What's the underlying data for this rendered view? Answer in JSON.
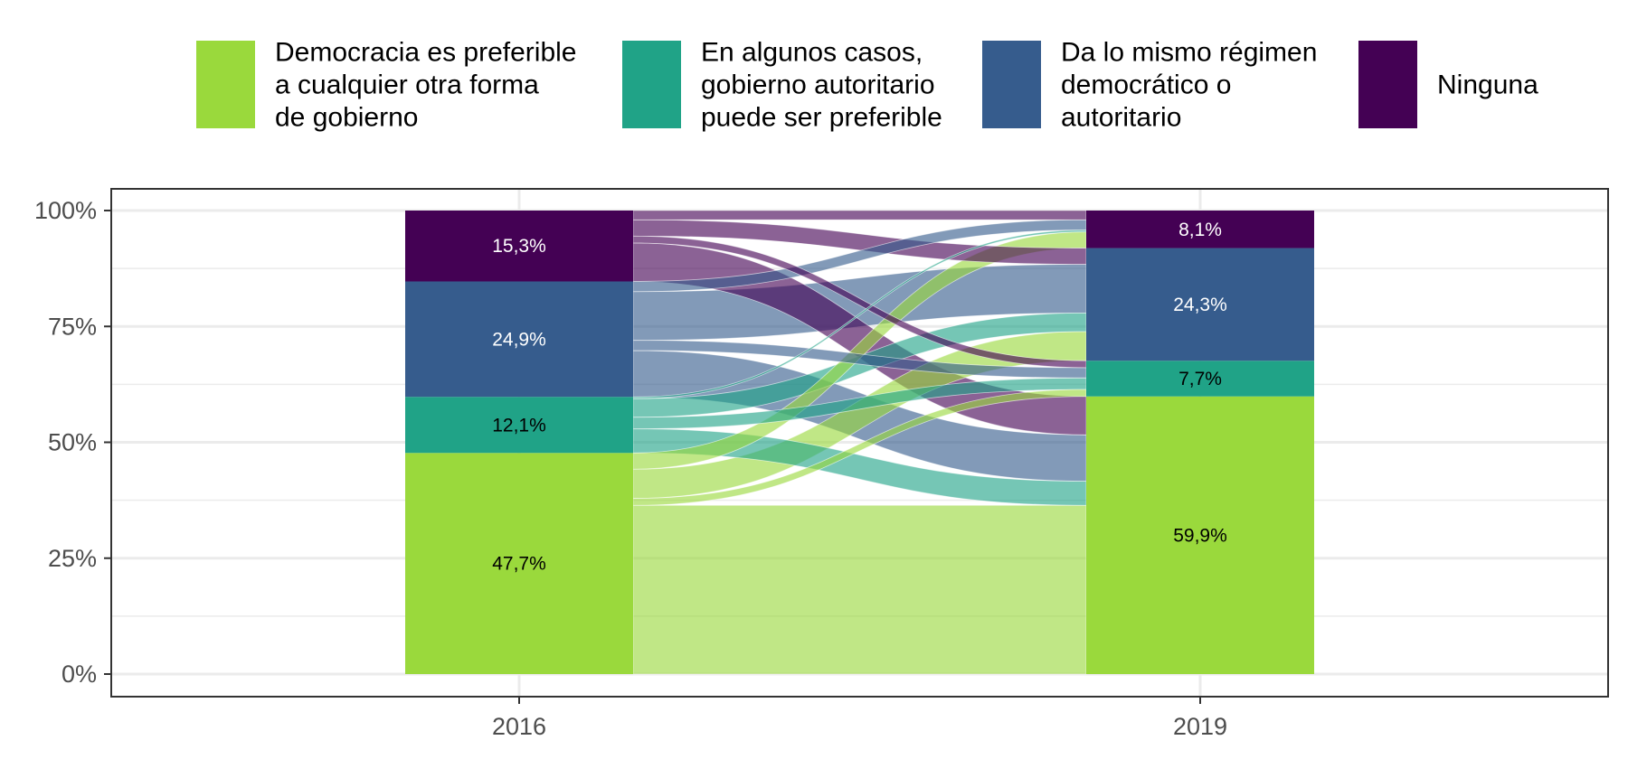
{
  "chart_data": {
    "type": "alluvial",
    "title": "",
    "xlabel": "",
    "ylabel": "",
    "ylim": [
      0,
      100
    ],
    "y_ticks": [
      "0%",
      "25%",
      "50%",
      "75%",
      "100%"
    ],
    "x": [
      "2016",
      "2019"
    ],
    "legend_position": "top",
    "grid": true,
    "categories": [
      {
        "key": "democracia",
        "lines": [
          "Democracia es preferible",
          "a cualquier otra forma",
          "de gobierno"
        ],
        "color": "#9ad93c",
        "label_color": "#000000"
      },
      {
        "key": "autoritario",
        "lines": [
          "En algunos casos,",
          "gobierno autoritario",
          "puede ser preferible"
        ],
        "color": "#20a387",
        "label_color": "#000000"
      },
      {
        "key": "da_lo_mismo",
        "lines": [
          "Da lo mismo régimen",
          "democrático o",
          "autoritario"
        ],
        "color": "#365c8d",
        "label_color": "#ffffff"
      },
      {
        "key": "ninguna",
        "lines": [
          "Ninguna"
        ],
        "color": "#440154",
        "label_color": "#ffffff"
      }
    ],
    "series": [
      {
        "year": "2016",
        "values": [
          47.7,
          12.1,
          24.9,
          15.3
        ],
        "labels": [
          "47,7%",
          "12,1%",
          "24,9%",
          "15,3%"
        ]
      },
      {
        "year": "2019",
        "values": [
          59.9,
          7.7,
          24.3,
          8.1
        ],
        "labels": [
          "59,9%",
          "7,7%",
          "24,3%",
          "8,1%"
        ]
      }
    ],
    "flows": [
      {
        "from": 0,
        "to": 0,
        "value": 36.4
      },
      {
        "from": 0,
        "to": 1,
        "value": 1.5
      },
      {
        "from": 0,
        "to": 2,
        "value": 6.3
      },
      {
        "from": 0,
        "to": 3,
        "value": 3.5
      },
      {
        "from": 1,
        "to": 0,
        "value": 5.2
      },
      {
        "from": 1,
        "to": 1,
        "value": 2.5
      },
      {
        "from": 1,
        "to": 2,
        "value": 4.0
      },
      {
        "from": 1,
        "to": 3,
        "value": 0.4
      },
      {
        "from": 2,
        "to": 0,
        "value": 10.0
      },
      {
        "from": 2,
        "to": 1,
        "value": 2.2
      },
      {
        "from": 2,
        "to": 2,
        "value": 10.5
      },
      {
        "from": 2,
        "to": 3,
        "value": 2.2
      },
      {
        "from": 3,
        "to": 0,
        "value": 8.3
      },
      {
        "from": 3,
        "to": 1,
        "value": 1.5
      },
      {
        "from": 3,
        "to": 2,
        "value": 3.5
      },
      {
        "from": 3,
        "to": 3,
        "value": 2.0
      }
    ]
  }
}
